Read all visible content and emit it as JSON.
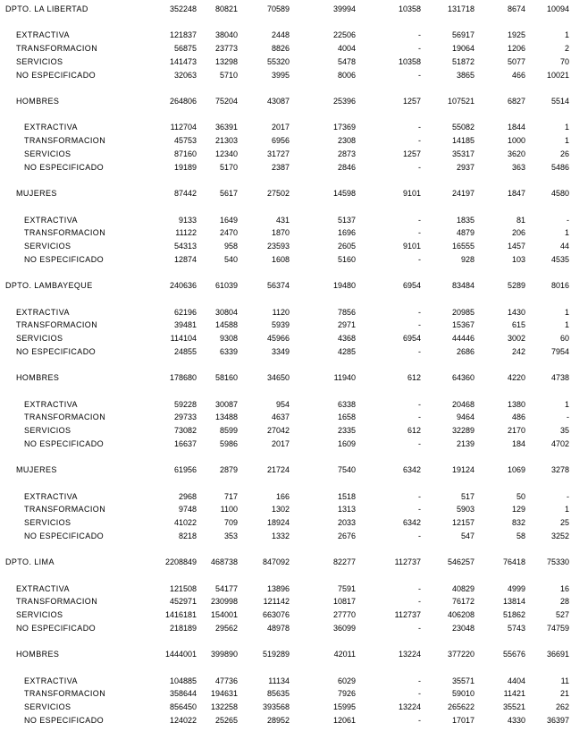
{
  "departments": [
    {
      "name": "DPTO.  LA LIBERTAD",
      "values": [
        "352248",
        "80821",
        "70589",
        "39994",
        "10358",
        "131718",
        "8674",
        "10094"
      ],
      "sectors": [
        {
          "label": "EXTRACTIVA",
          "values": [
            "121837",
            "38040",
            "2448",
            "22506",
            "-",
            "56917",
            "1925",
            "1"
          ]
        },
        {
          "label": "TRANSFORMACION",
          "values": [
            "56875",
            "23773",
            "8826",
            "4004",
            "-",
            "19064",
            "1206",
            "2"
          ]
        },
        {
          "label": "SERVICIOS",
          "values": [
            "141473",
            "13298",
            "55320",
            "5478",
            "10358",
            "51872",
            "5077",
            "70"
          ]
        },
        {
          "label": "NO ESPECIFICADO",
          "values": [
            "32063",
            "5710",
            "3995",
            "8006",
            "-",
            "3865",
            "466",
            "10021"
          ]
        }
      ],
      "groups": [
        {
          "label": "HOMBRES",
          "values": [
            "264806",
            "75204",
            "43087",
            "25396",
            "1257",
            "107521",
            "6827",
            "5514"
          ],
          "sectors": [
            {
              "label": "EXTRACTIVA",
              "values": [
                "112704",
                "36391",
                "2017",
                "17369",
                "-",
                "55082",
                "1844",
                "1"
              ]
            },
            {
              "label": "TRANSFORMACION",
              "values": [
                "45753",
                "21303",
                "6956",
                "2308",
                "-",
                "14185",
                "1000",
                "1"
              ]
            },
            {
              "label": "SERVICIOS",
              "values": [
                "87160",
                "12340",
                "31727",
                "2873",
                "1257",
                "35317",
                "3620",
                "26"
              ]
            },
            {
              "label": "NO ESPECIFICADO",
              "values": [
                "19189",
                "5170",
                "2387",
                "2846",
                "-",
                "2937",
                "363",
                "5486"
              ]
            }
          ]
        },
        {
          "label": "MUJERES",
          "values": [
            "87442",
            "5617",
            "27502",
            "14598",
            "9101",
            "24197",
            "1847",
            "4580"
          ],
          "sectors": [
            {
              "label": "EXTRACTIVA",
              "values": [
                "9133",
                "1649",
                "431",
                "5137",
                "-",
                "1835",
                "81",
                "-"
              ]
            },
            {
              "label": "TRANSFORMACION",
              "values": [
                "11122",
                "2470",
                "1870",
                "1696",
                "-",
                "4879",
                "206",
                "1"
              ]
            },
            {
              "label": "SERVICIOS",
              "values": [
                "54313",
                "958",
                "23593",
                "2605",
                "9101",
                "16555",
                "1457",
                "44"
              ]
            },
            {
              "label": "NO ESPECIFICADO",
              "values": [
                "12874",
                "540",
                "1608",
                "5160",
                "-",
                "928",
                "103",
                "4535"
              ]
            }
          ]
        }
      ]
    },
    {
      "name": "DPTO.  LAMBAYEQUE",
      "values": [
        "240636",
        "61039",
        "56374",
        "19480",
        "6954",
        "83484",
        "5289",
        "8016"
      ],
      "sectors": [
        {
          "label": "EXTRACTIVA",
          "values": [
            "62196",
            "30804",
            "1120",
            "7856",
            "-",
            "20985",
            "1430",
            "1"
          ]
        },
        {
          "label": "TRANSFORMACION",
          "values": [
            "39481",
            "14588",
            "5939",
            "2971",
            "-",
            "15367",
            "615",
            "1"
          ]
        },
        {
          "label": "SERVICIOS",
          "values": [
            "114104",
            "9308",
            "45966",
            "4368",
            "6954",
            "44446",
            "3002",
            "60"
          ]
        },
        {
          "label": "NO ESPECIFICADO",
          "values": [
            "24855",
            "6339",
            "3349",
            "4285",
            "-",
            "2686",
            "242",
            "7954"
          ]
        }
      ],
      "groups": [
        {
          "label": "HOMBRES",
          "values": [
            "178680",
            "58160",
            "34650",
            "11940",
            "612",
            "64360",
            "4220",
            "4738"
          ],
          "sectors": [
            {
              "label": "EXTRACTIVA",
              "values": [
                "59228",
                "30087",
                "954",
                "6338",
                "-",
                "20468",
                "1380",
                "1"
              ]
            },
            {
              "label": "TRANSFORMACION",
              "values": [
                "29733",
                "13488",
                "4637",
                "1658",
                "-",
                "9464",
                "486",
                "-"
              ]
            },
            {
              "label": "SERVICIOS",
              "values": [
                "73082",
                "8599",
                "27042",
                "2335",
                "612",
                "32289",
                "2170",
                "35"
              ]
            },
            {
              "label": "NO ESPECIFICADO",
              "values": [
                "16637",
                "5986",
                "2017",
                "1609",
                "-",
                "2139",
                "184",
                "4702"
              ]
            }
          ]
        },
        {
          "label": "MUJERES",
          "values": [
            "61956",
            "2879",
            "21724",
            "7540",
            "6342",
            "19124",
            "1069",
            "3278"
          ],
          "sectors": [
            {
              "label": "EXTRACTIVA",
              "values": [
                "2968",
                "717",
                "166",
                "1518",
                "-",
                "517",
                "50",
                "-"
              ]
            },
            {
              "label": "TRANSFORMACION",
              "values": [
                "9748",
                "1100",
                "1302",
                "1313",
                "-",
                "5903",
                "129",
                "1"
              ]
            },
            {
              "label": "SERVICIOS",
              "values": [
                "41022",
                "709",
                "18924",
                "2033",
                "6342",
                "12157",
                "832",
                "25"
              ]
            },
            {
              "label": "NO ESPECIFICADO",
              "values": [
                "8218",
                "353",
                "1332",
                "2676",
                "-",
                "547",
                "58",
                "3252"
              ]
            }
          ]
        }
      ]
    },
    {
      "name": "DPTO.  LIMA",
      "values": [
        "2208849",
        "468738",
        "847092",
        "82277",
        "112737",
        "546257",
        "76418",
        "75330"
      ],
      "sectors": [
        {
          "label": "EXTRACTIVA",
          "values": [
            "121508",
            "54177",
            "13896",
            "7591",
            "-",
            "40829",
            "4999",
            "16"
          ]
        },
        {
          "label": "TRANSFORMACION",
          "values": [
            "452971",
            "230998",
            "121142",
            "10817",
            "-",
            "76172",
            "13814",
            "28"
          ]
        },
        {
          "label": "SERVICIOS",
          "values": [
            "1416181",
            "154001",
            "663076",
            "27770",
            "112737",
            "406208",
            "51862",
            "527"
          ]
        },
        {
          "label": "NO ESPECIFICADO",
          "values": [
            "218189",
            "29562",
            "48978",
            "36099",
            "-",
            "23048",
            "5743",
            "74759"
          ]
        }
      ],
      "groups": [
        {
          "label": "HOMBRES",
          "values": [
            "1444001",
            "399890",
            "519289",
            "42011",
            "13224",
            "377220",
            "55676",
            "36691"
          ],
          "sectors": [
            {
              "label": "EXTRACTIVA",
              "values": [
                "104885",
                "47736",
                "11134",
                "6029",
                "-",
                "35571",
                "4404",
                "11"
              ]
            },
            {
              "label": "TRANSFORMACION",
              "values": [
                "358644",
                "194631",
                "85635",
                "7926",
                "-",
                "59010",
                "11421",
                "21"
              ]
            },
            {
              "label": "SERVICIOS",
              "values": [
                "856450",
                "132258",
                "393568",
                "15995",
                "13224",
                "265622",
                "35521",
                "262"
              ]
            },
            {
              "label": "NO ESPECIFICADO",
              "values": [
                "124022",
                "25265",
                "28952",
                "12061",
                "-",
                "17017",
                "4330",
                "36397"
              ]
            }
          ]
        }
      ]
    }
  ]
}
